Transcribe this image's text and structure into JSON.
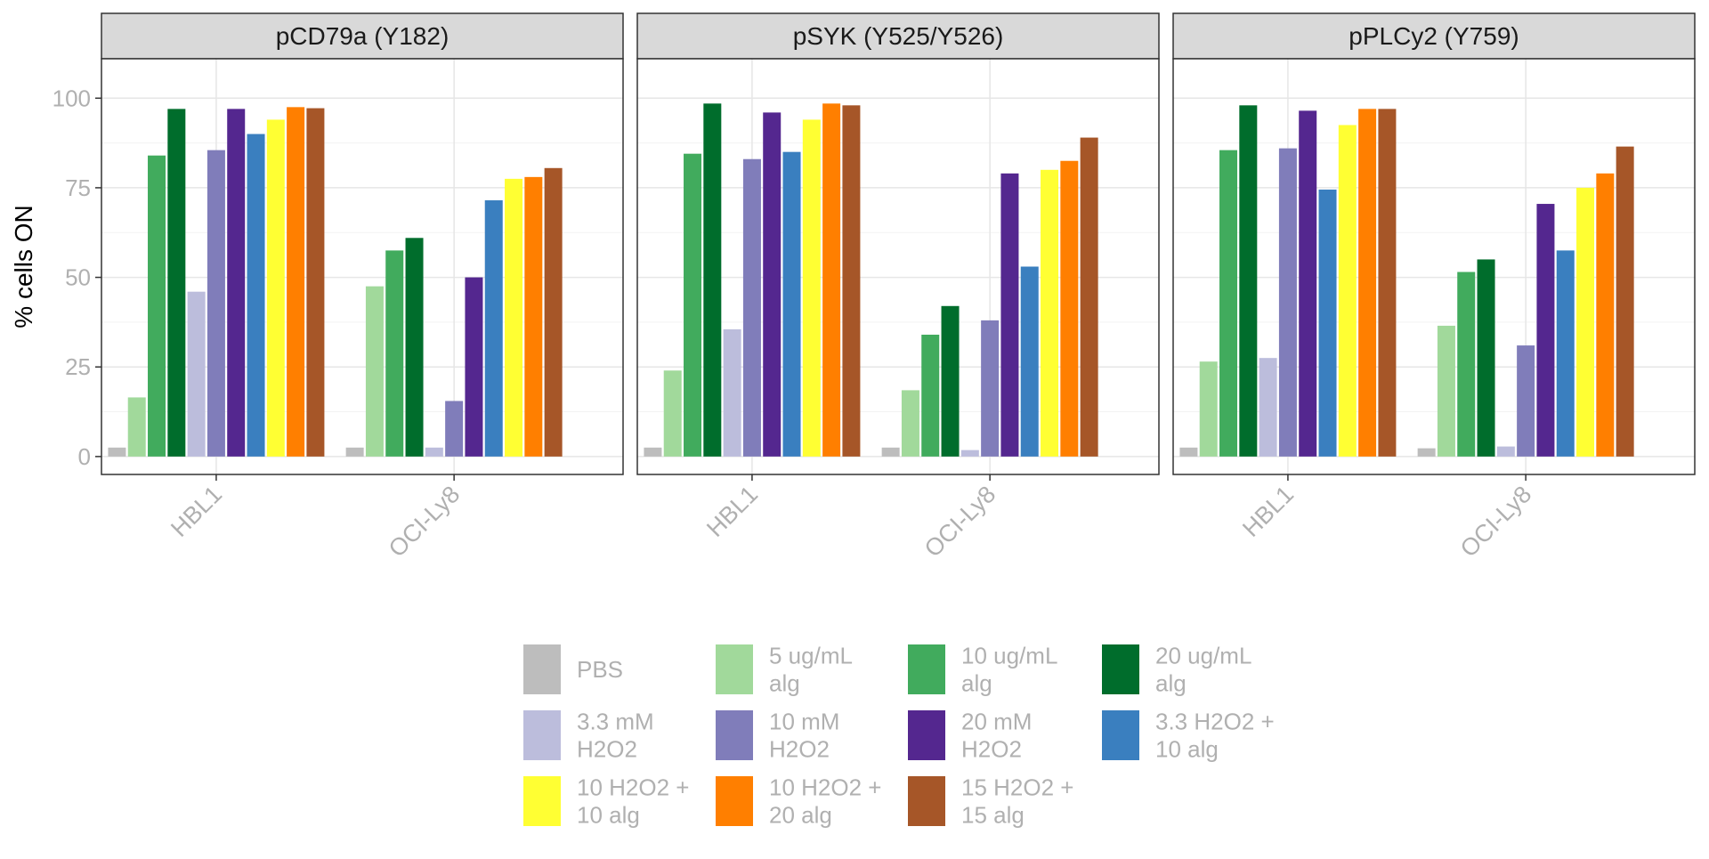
{
  "chart_data": {
    "type": "bar",
    "ylabel": "% cells ON",
    "xlabel": "",
    "ylim": [
      -5,
      111
    ],
    "yticks": [
      0,
      25,
      50,
      75,
      100
    ],
    "grid": true,
    "legend_position": "bottom",
    "categories": [
      "HBL1",
      "OCI-Ly8"
    ],
    "series": [
      {
        "name": "PBS",
        "color": "#bdbdbd"
      },
      {
        "name": "5 ug/mL\nalg",
        "color": "#a1d99b"
      },
      {
        "name": "10 ug/mL\nalg",
        "color": "#41ab5d"
      },
      {
        "name": "20 ug/mL\nalg",
        "color": "#006d2c"
      },
      {
        "name": "3.3 mM\nH2O2",
        "color": "#bcbddc"
      },
      {
        "name": "10 mM\nH2O2",
        "color": "#807dba"
      },
      {
        "name": "20 mM\nH2O2",
        "color": "#54278f"
      },
      {
        "name": "3.3 H2O2 +\n10 alg",
        "color": "#3a7fbf"
      },
      {
        "name": "10 H2O2 +\n10 alg",
        "color": "#ffff33"
      },
      {
        "name": "10 H2O2 +\n20 alg",
        "color": "#ff7f00"
      },
      {
        "name": "15 H2O2 +\n15 alg",
        "color": "#a65628"
      }
    ],
    "panels": [
      {
        "title": "pCD79a (Y182)",
        "values": {
          "HBL1": [
            2.5,
            16.5,
            84,
            97,
            46,
            85.5,
            97,
            90,
            94,
            97.5,
            97.2
          ],
          "OCI-Ly8": [
            2.5,
            47.5,
            57.5,
            61,
            2.5,
            15.5,
            50,
            71.5,
            77.5,
            78,
            80.5
          ]
        }
      },
      {
        "title": "pSYK (Y525/Y526)",
        "values": {
          "HBL1": [
            2.5,
            24,
            84.5,
            98.5,
            35.5,
            83,
            96,
            85,
            94,
            98.5,
            98
          ],
          "OCI-Ly8": [
            2.5,
            18.5,
            34,
            42,
            1.8,
            38,
            79,
            53,
            80,
            82.5,
            89
          ]
        }
      },
      {
        "title": "pPLCy2 (Y759)",
        "values": {
          "HBL1": [
            2.5,
            26.5,
            85.5,
            98,
            27.5,
            86,
            96.5,
            74.5,
            92.5,
            97,
            97
          ],
          "OCI-Ly8": [
            2.3,
            36.5,
            51.5,
            55,
            2.8,
            31,
            70.5,
            57.5,
            75,
            79,
            86.5
          ]
        }
      }
    ]
  }
}
